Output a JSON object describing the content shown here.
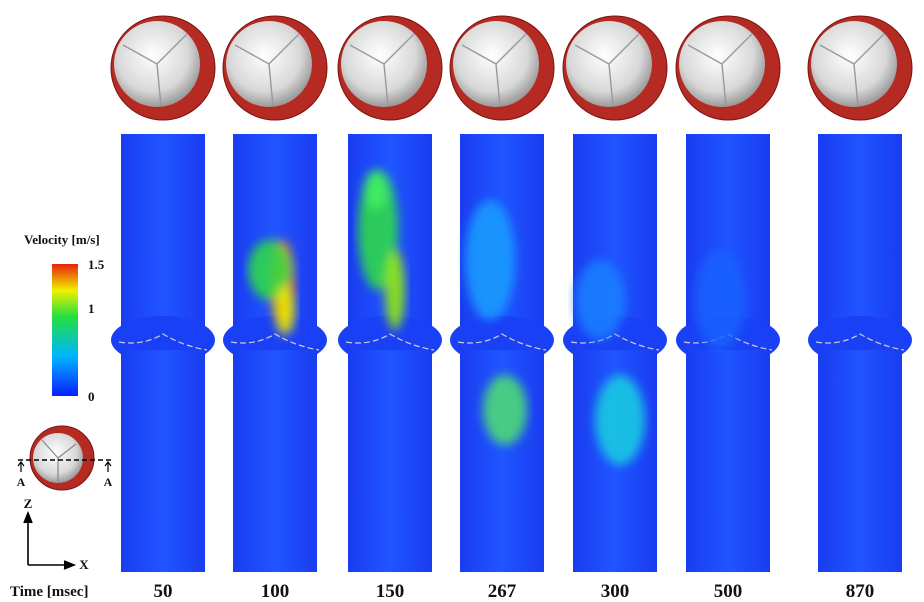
{
  "legend": {
    "title": "Velocity [m/s]",
    "ticks": [
      0,
      1,
      1.5
    ]
  },
  "section": {
    "cut_labels": [
      "A",
      "A"
    ]
  },
  "axes": {
    "z": "Z",
    "x": "X"
  },
  "time_label": "Time  [msec]",
  "times": [
    50,
    100,
    150,
    267,
    300,
    500,
    870
  ]
}
